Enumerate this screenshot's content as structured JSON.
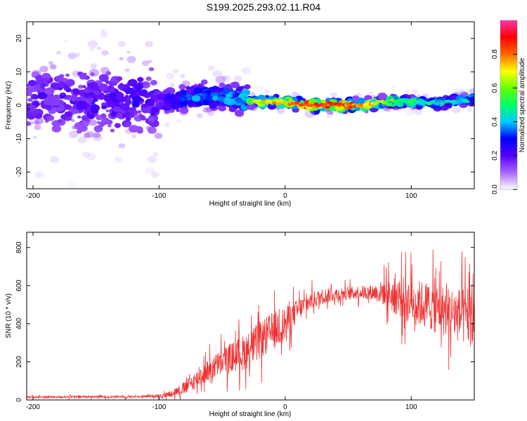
{
  "title": "S199.2025.293.02.11.R04",
  "chart_data": [
    {
      "type": "heatmap",
      "name": "spectrogram",
      "xlabel": "Height of straight line (km)",
      "ylabel": "Frequency (Hz)",
      "xlim": [
        -205,
        150
      ],
      "ylim": [
        -25,
        25
      ],
      "xticks": [
        -200,
        -100,
        0,
        100
      ],
      "yticks": [
        -20,
        -10,
        0,
        10,
        20
      ],
      "colorbar": {
        "label": "Normalized spectral amplitude",
        "range": [
          0,
          1
        ],
        "ticks": [
          "0.0",
          "0.2",
          "0.4",
          "0.6",
          "0.8"
        ],
        "tick_values": [
          0.0,
          0.2,
          0.4,
          0.6,
          0.8
        ],
        "stops": [
          "#ffffff",
          "#aa66ff",
          "#5500ff",
          "#0000ff",
          "#00ccff",
          "#00ff66",
          "#66ff00",
          "#ffff00",
          "#ff6600",
          "#ff0000",
          "#ff33aa"
        ]
      },
      "ridge": {
        "x": [
          -205,
          -100,
          -80,
          -60,
          -40,
          -20,
          0,
          20,
          40,
          60,
          80,
          100,
          120,
          150
        ],
        "freq": [
          2,
          1,
          2,
          3,
          2,
          1,
          1,
          0,
          0,
          0,
          1,
          1,
          0.5,
          2
        ],
        "amplitude": [
          0.2,
          0.25,
          0.35,
          0.4,
          0.4,
          0.7,
          0.75,
          0.9,
          0.9,
          0.85,
          0.6,
          0.5,
          0.45,
          0.45
        ]
      }
    },
    {
      "type": "line",
      "name": "snr",
      "xlabel": "Height of straight line (km)",
      "ylabel": "SNR (10 * v/v)",
      "xlim": [
        -205,
        150
      ],
      "ylim": [
        0,
        880
      ],
      "xticks": [
        -200,
        -100,
        0,
        100
      ],
      "yticks": [
        0,
        200,
        400,
        600,
        800
      ],
      "color": "#ee3333",
      "envelope": {
        "x": [
          -205,
          -110,
          -95,
          -80,
          -70,
          -60,
          -50,
          -40,
          -30,
          -20,
          -10,
          0,
          10,
          20,
          30,
          40,
          50,
          60,
          70,
          80,
          90,
          100,
          110,
          120,
          130,
          140,
          150
        ],
        "mean": [
          15,
          18,
          25,
          60,
          110,
          160,
          200,
          230,
          260,
          310,
          360,
          400,
          470,
          520,
          545,
          555,
          560,
          565,
          565,
          560,
          540,
          520,
          500,
          480,
          460,
          440,
          420
        ],
        "spread": [
          10,
          10,
          20,
          60,
          80,
          100,
          120,
          140,
          160,
          170,
          170,
          150,
          100,
          80,
          70,
          60,
          60,
          60,
          70,
          120,
          180,
          200,
          210,
          220,
          230,
          250,
          260
        ]
      }
    }
  ]
}
